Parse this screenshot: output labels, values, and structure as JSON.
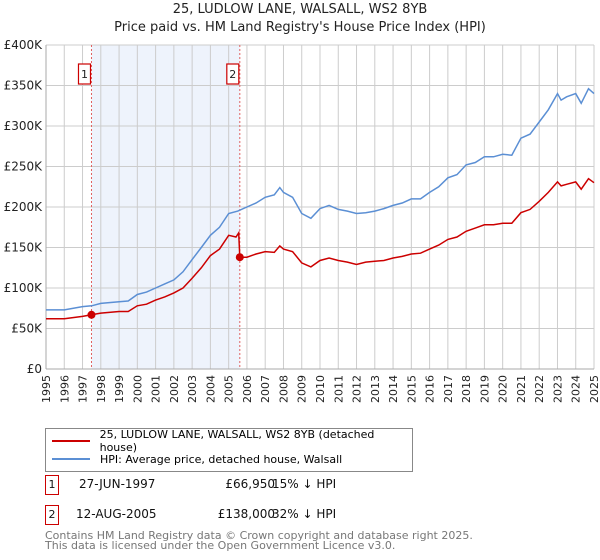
{
  "chart_data": {
    "type": "line",
    "title": "25, LUDLOW LANE, WALSALL, WS2 8YB",
    "subtitle": "Price paid vs. HM Land Registry's House Price Index (HPI)",
    "xlim": [
      1995,
      2025
    ],
    "ylim": [
      0,
      400000
    ],
    "yticks": [
      {
        "v": 0,
        "label": "£0"
      },
      {
        "v": 50000,
        "label": "£50K"
      },
      {
        "v": 100000,
        "label": "£100K"
      },
      {
        "v": 150000,
        "label": "£150K"
      },
      {
        "v": 200000,
        "label": "£200K"
      },
      {
        "v": 250000,
        "label": "£250K"
      },
      {
        "v": 300000,
        "label": "£300K"
      },
      {
        "v": 350000,
        "label": "£350K"
      },
      {
        "v": 400000,
        "label": "£400K"
      }
    ],
    "xticks": [
      "1995",
      "1996",
      "1997",
      "1998",
      "1999",
      "2000",
      "2001",
      "2002",
      "2003",
      "2004",
      "2005",
      "2006",
      "2007",
      "2008",
      "2009",
      "2010",
      "2011",
      "2012",
      "2013",
      "2014",
      "2015",
      "2016",
      "2017",
      "2018",
      "2019",
      "2020",
      "2021",
      "2022",
      "2023",
      "2024",
      "2025"
    ],
    "grid": true,
    "shaded_range": [
      1997.49,
      2005.61
    ],
    "series": [
      {
        "name": "25, LUDLOW LANE, WALSALL, WS2 8YB (detached house)",
        "color": "#cc0000",
        "x": [
          1995,
          1996,
          1997,
          1997.49,
          1998,
          1999,
          1999.5,
          2000,
          2000.5,
          2001,
          2001.5,
          2002,
          2002.5,
          2003,
          2003.5,
          2004,
          2004.5,
          2005,
          2005.4,
          2005.55,
          2005.61,
          2006,
          2006.5,
          2007,
          2007.5,
          2007.8,
          2008,
          2008.5,
          2009,
          2009.5,
          2010,
          2010.5,
          2011,
          2011.5,
          2012,
          2012.5,
          2013,
          2013.5,
          2014,
          2014.5,
          2015,
          2015.5,
          2016,
          2016.5,
          2017,
          2017.5,
          2018,
          2018.5,
          2019,
          2019.5,
          2020,
          2020.5,
          2021,
          2021.5,
          2022,
          2022.5,
          2023,
          2023.2,
          2023.5,
          2024,
          2024.3,
          2024.7,
          2025
        ],
        "y": [
          62,
          62,
          65,
          66.95,
          69,
          71,
          71,
          78,
          80,
          85,
          89,
          94,
          100,
          112,
          125,
          140,
          148,
          165,
          163,
          168,
          138,
          138,
          142,
          145,
          144,
          152,
          148,
          145,
          131,
          126,
          134,
          137,
          134,
          132,
          129,
          132,
          133,
          134,
          137,
          139,
          142,
          143,
          148,
          153,
          160,
          163,
          170,
          174,
          178,
          178,
          180,
          180,
          193,
          197,
          207,
          218,
          231,
          226,
          228,
          231,
          222,
          235,
          230
        ]
      },
      {
        "name": "HPI: Average price, detached house, Walsall",
        "color": "#5b8fd4",
        "x": [
          1995,
          1996,
          1997,
          1997.5,
          1998,
          1999,
          1999.5,
          2000,
          2000.5,
          2001,
          2001.5,
          2002,
          2002.5,
          2003,
          2003.5,
          2004,
          2004.5,
          2005,
          2005.5,
          2006,
          2006.5,
          2007,
          2007.5,
          2007.8,
          2008,
          2008.5,
          2009,
          2009.5,
          2010,
          2010.5,
          2011,
          2011.5,
          2012,
          2012.5,
          2013,
          2013.5,
          2014,
          2014.5,
          2015,
          2015.5,
          2016,
          2016.5,
          2017,
          2017.5,
          2018,
          2018.5,
          2019,
          2019.5,
          2020,
          2020.5,
          2021,
          2021.5,
          2022,
          2022.5,
          2023,
          2023.2,
          2023.5,
          2024,
          2024.3,
          2024.7,
          2025
        ],
        "y": [
          73,
          73,
          77,
          78,
          81,
          83,
          84,
          92,
          95,
          100,
          105,
          110,
          120,
          135,
          150,
          165,
          175,
          192,
          195,
          200,
          205,
          212,
          215,
          224,
          218,
          212,
          192,
          186,
          198,
          202,
          197,
          195,
          192,
          193,
          195,
          198,
          202,
          205,
          210,
          210,
          218,
          225,
          236,
          240,
          252,
          255,
          262,
          262,
          265,
          264,
          285,
          290,
          305,
          320,
          340,
          332,
          336,
          340,
          328,
          346,
          340
        ]
      }
    ],
    "y_units": "thousands GBP",
    "markers": [
      {
        "label": "1",
        "x": 1997.49,
        "y": 66.95
      },
      {
        "label": "2",
        "x": 2005.61,
        "y": 138
      }
    ],
    "legend": "below"
  },
  "sales": [
    {
      "num": "1",
      "date": "27-JUN-1997",
      "price": "£66,950",
      "hpi": "15% ↓ HPI"
    },
    {
      "num": "2",
      "date": "12-AUG-2005",
      "price": "£138,000",
      "hpi": "32% ↓ HPI"
    }
  ],
  "footer": {
    "line1": "Contains HM Land Registry data © Crown copyright and database right 2025.",
    "line2": "This data is licensed under the Open Government Licence v3.0."
  }
}
